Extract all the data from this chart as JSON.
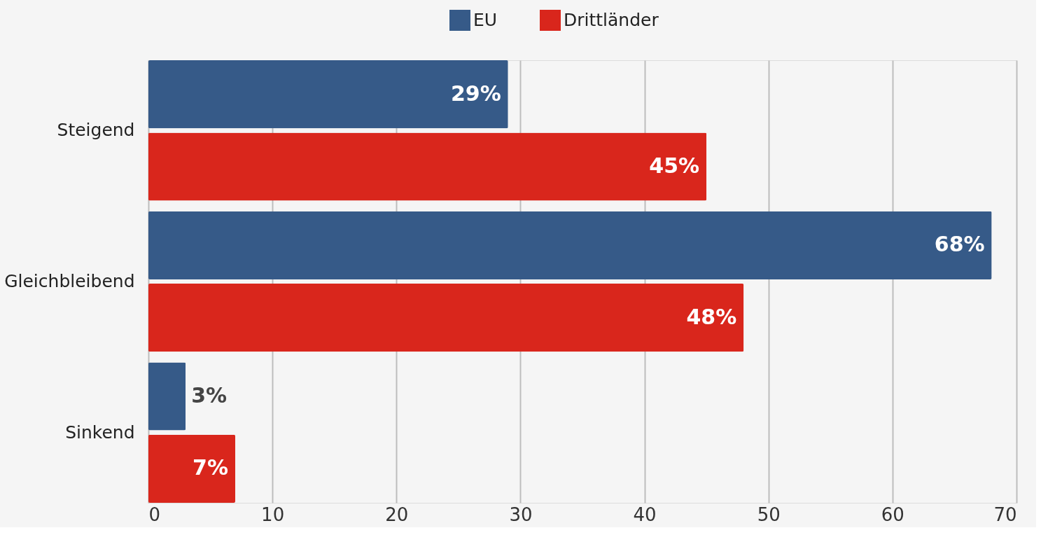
{
  "chart_data": {
    "type": "bar",
    "orientation": "horizontal",
    "categories": [
      "Steigend",
      "Gleichbleibend",
      "Sinkend"
    ],
    "series": [
      {
        "name": "EU",
        "color": "#365a88",
        "values": [
          29,
          68,
          3
        ],
        "value_labels": [
          "29%",
          "68%",
          "3%"
        ]
      },
      {
        "name": "Drittländer",
        "color": "#d9261c",
        "values": [
          45,
          48,
          7
        ],
        "value_labels": [
          "45%",
          "48%",
          "7%"
        ]
      }
    ],
    "xlim": [
      0,
      70
    ],
    "xticks": [
      0,
      10,
      20,
      30,
      40,
      50,
      60,
      70
    ],
    "grid": "x",
    "legend": "top"
  }
}
